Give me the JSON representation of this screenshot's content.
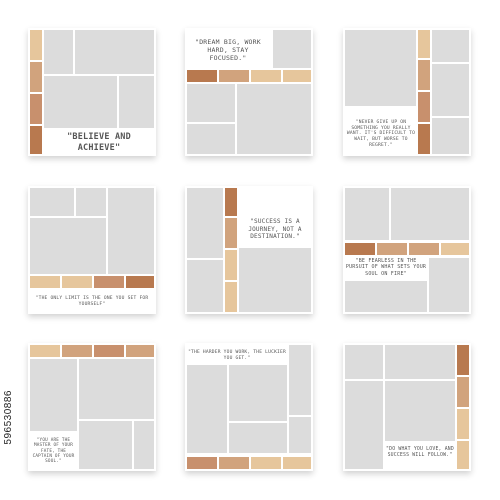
{
  "quotes": [
    "\"BELIEVE AND ACHIEVE\"",
    "\"DREAM BIG, WORK HARD, STAY FOCUSED.\"",
    "\"NEVER GIVE UP ON SOMETHING YOU REALLY WANT. IT'S DIFFICULT TO WAIT, BUT WORSE TO REGRET.\"",
    "\"THE ONLY LIMIT IS THE ONE YOU SET FOR YOURSELF\"",
    "\"SUCCESS IS A JOURNEY, NOT A DESTINATION.\"",
    "\"BE FEARLESS IN THE PURSUIT OF WHAT SETS YOUR SOUL ON FIRE\"",
    "\"YOU ARE THE MASTER OF YOUR FATE, THE CAPTAIN OF YOUR SOUL.\"",
    "\"THE HARDER YOU WORK, THE LUCKIER YOU GET.\"",
    "\"DO WHAT YOU LOVE, AND SUCCESS WILL FOLLOW.\""
  ],
  "stock_id": "596530886",
  "colors": {
    "placeholder": "#dcdcdc",
    "swatch_light": "#e6c69c",
    "swatch_tan": "#d1a37d",
    "swatch_mid": "#c8906d",
    "swatch_dark": "#b8794f"
  }
}
